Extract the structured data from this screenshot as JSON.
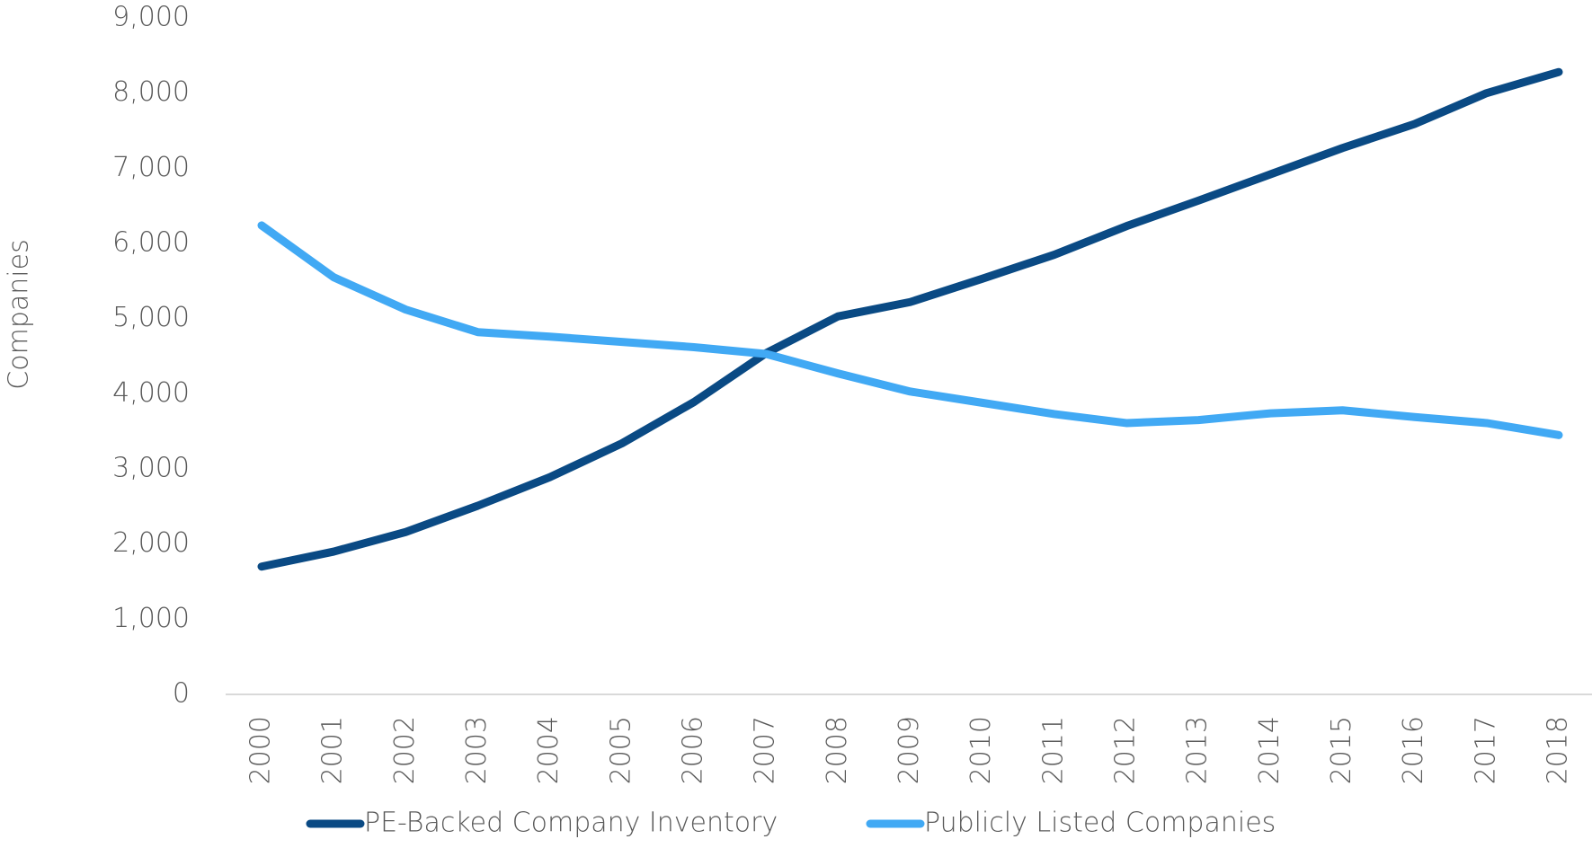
{
  "chart_data": {
    "type": "line",
    "y_label": "Companies",
    "categories": [
      "2000",
      "2001",
      "2002",
      "2003",
      "2004",
      "2005",
      "2006",
      "2007",
      "2008",
      "2009",
      "2010",
      "2011",
      "2012",
      "2013",
      "2014",
      "2015",
      "2016",
      "2017",
      "2018"
    ],
    "series": [
      {
        "name": "PE-Backed Company Inventory",
        "color": "#0a4a84",
        "values": [
          1700,
          1900,
          2160,
          2510,
          2890,
          3340,
          3890,
          4540,
          5030,
          5220,
          5530,
          5850,
          6230,
          6570,
          6920,
          7270,
          7590,
          8000,
          8280
        ]
      },
      {
        "name": "Publicly Listed Companies",
        "color": "#41a9f4",
        "values": [
          6240,
          5550,
          5120,
          4820,
          4760,
          4690,
          4620,
          4530,
          4270,
          4030,
          3880,
          3730,
          3610,
          3650,
          3740,
          3780,
          3690,
          3610,
          3450
        ]
      }
    ],
    "ylim": [
      0,
      9000
    ],
    "yticks": [
      0,
      {
        "value": 1000,
        "label": "1,000"
      },
      {
        "value": 2000,
        "label": "2,000"
      },
      {
        "value": 3000,
        "label": "3,000"
      },
      {
        "value": 4000,
        "label": "4,000"
      },
      {
        "value": 5000,
        "label": "5,000"
      },
      {
        "value": 6000,
        "label": "6,000"
      },
      {
        "value": 7000,
        "label": "7,000"
      },
      {
        "value": 8000,
        "label": "8,000"
      },
      {
        "value": 9000,
        "label": "9,000"
      }
    ],
    "legend": "bottom"
  }
}
